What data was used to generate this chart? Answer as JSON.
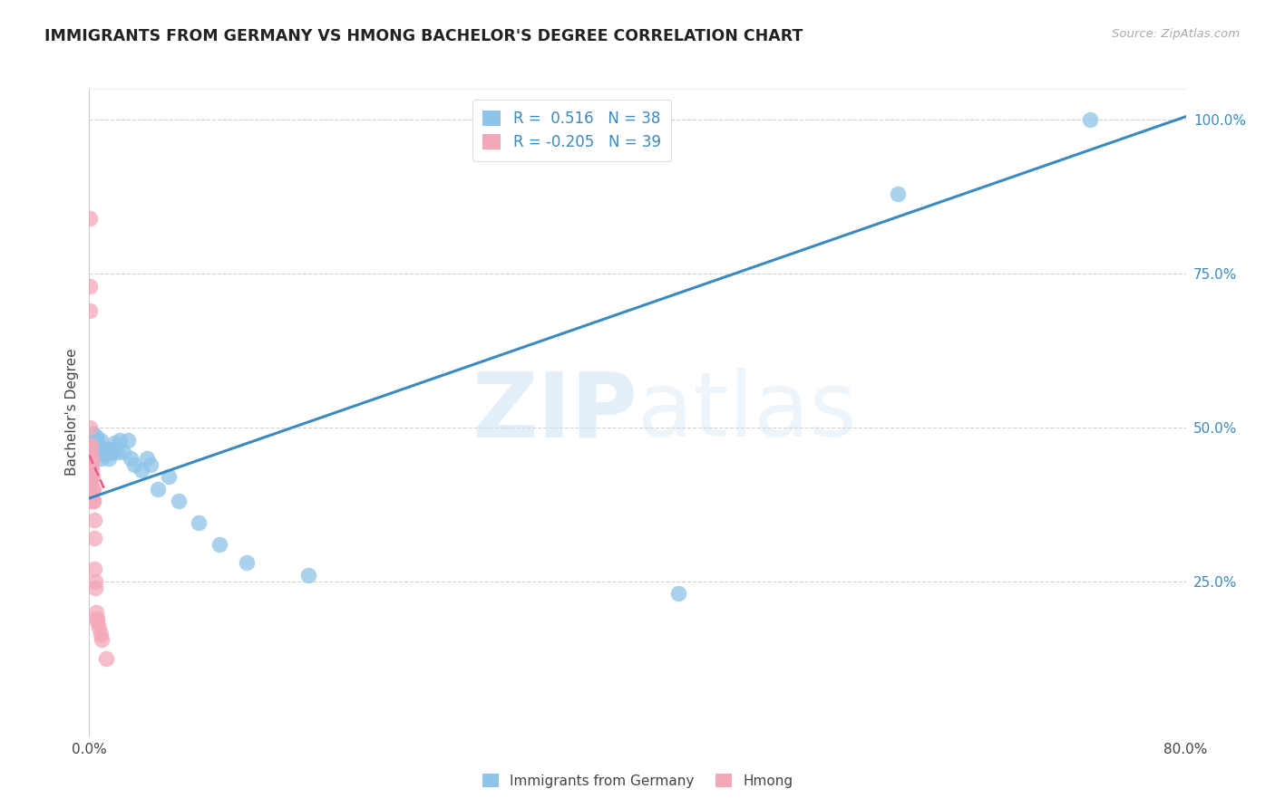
{
  "title": "IMMIGRANTS FROM GERMANY VS HMONG BACHELOR'S DEGREE CORRELATION CHART",
  "source": "Source: ZipAtlas.com",
  "xlabel": "",
  "ylabel": "Bachelor's Degree",
  "xlim": [
    0.0,
    0.8
  ],
  "ylim": [
    0.0,
    1.05
  ],
  "xticks": [
    0.0,
    0.2,
    0.4,
    0.6,
    0.8
  ],
  "xticklabels": [
    "0.0%",
    "",
    "",
    "",
    "80.0%"
  ],
  "yticks_right": [
    0.25,
    0.5,
    0.75,
    1.0
  ],
  "yticklabels_right": [
    "25.0%",
    "50.0%",
    "75.0%",
    "100.0%"
  ],
  "watermark_zip": "ZIP",
  "watermark_atlas": "atlas",
  "legend_r1_label": "R =  0.516   N = 38",
  "legend_r2_label": "R = -0.205   N = 39",
  "blue_color": "#8ec4e8",
  "pink_color": "#f4a7b9",
  "trend_blue": "#3a8abf",
  "trend_pink": "#e86090",
  "blue_tick_color": "#3a8abf",
  "germany_x": [
    0.003,
    0.004,
    0.004,
    0.005,
    0.005,
    0.006,
    0.007,
    0.008,
    0.008,
    0.009,
    0.01,
    0.011,
    0.012,
    0.013,
    0.014,
    0.015,
    0.016,
    0.017,
    0.018,
    0.02,
    0.022,
    0.025,
    0.028,
    0.03,
    0.033,
    0.038,
    0.042,
    0.045,
    0.05,
    0.058,
    0.065,
    0.08,
    0.095,
    0.115,
    0.16,
    0.43,
    0.59,
    0.73
  ],
  "germany_y": [
    0.49,
    0.46,
    0.475,
    0.485,
    0.475,
    0.48,
    0.47,
    0.46,
    0.48,
    0.45,
    0.46,
    0.455,
    0.46,
    0.465,
    0.45,
    0.46,
    0.46,
    0.465,
    0.475,
    0.46,
    0.48,
    0.46,
    0.48,
    0.45,
    0.44,
    0.43,
    0.45,
    0.44,
    0.4,
    0.42,
    0.38,
    0.345,
    0.31,
    0.28,
    0.26,
    0.23,
    0.88,
    1.0
  ],
  "hmong_x": [
    0.0005,
    0.0005,
    0.0005,
    0.0005,
    0.0005,
    0.0005,
    0.0005,
    0.0005,
    0.0005,
    0.0008,
    0.0008,
    0.0008,
    0.001,
    0.001,
    0.001,
    0.001,
    0.0012,
    0.0012,
    0.0015,
    0.0015,
    0.0018,
    0.002,
    0.0022,
    0.0025,
    0.0028,
    0.003,
    0.0032,
    0.0035,
    0.0038,
    0.004,
    0.0042,
    0.0045,
    0.005,
    0.0055,
    0.006,
    0.007,
    0.008,
    0.009,
    0.012
  ],
  "hmong_y": [
    0.84,
    0.73,
    0.69,
    0.5,
    0.47,
    0.45,
    0.43,
    0.42,
    0.38,
    0.47,
    0.45,
    0.42,
    0.46,
    0.44,
    0.42,
    0.4,
    0.44,
    0.41,
    0.45,
    0.42,
    0.43,
    0.44,
    0.42,
    0.4,
    0.38,
    0.4,
    0.38,
    0.35,
    0.32,
    0.27,
    0.24,
    0.25,
    0.2,
    0.19,
    0.185,
    0.175,
    0.165,
    0.155,
    0.125
  ],
  "trend_blue_x0": 0.0,
  "trend_blue_y0": 0.385,
  "trend_blue_x1": 0.8,
  "trend_blue_y1": 1.005,
  "trend_pink_x0": 0.0,
  "trend_pink_y0": 0.455,
  "trend_pink_x1": 0.012,
  "trend_pink_y1": 0.395,
  "background_color": "#ffffff",
  "grid_color": "#cccccc"
}
